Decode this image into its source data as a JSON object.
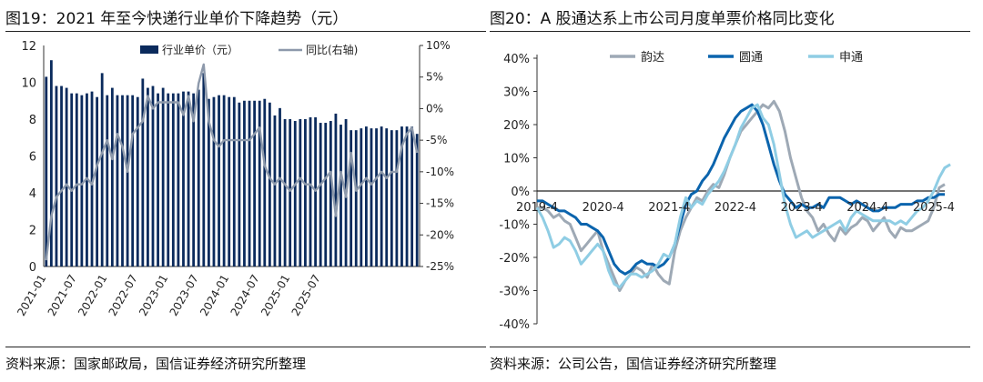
{
  "left": {
    "title": "图19：2021 年至今快递行业单价下降趋势（元）",
    "source": "资料来源：国家邮政局，国信证券经济研究所整理",
    "chart_data": {
      "type": "bar+line",
      "legend_position": "top",
      "series": [
        {
          "name": "行业单价（元）",
          "type": "bar",
          "axis": "left",
          "color": "#0a2a5c",
          "values": [
            10.3,
            11.2,
            9.8,
            9.8,
            9.7,
            9.4,
            9.4,
            9.3,
            9.4,
            9.5,
            9.2,
            10.5,
            9.3,
            9.7,
            9.3,
            9.3,
            9.3,
            9.3,
            9.2,
            10.2,
            9.7,
            9.8,
            9.4,
            9.7,
            9.4,
            9.4,
            9.4,
            9.5,
            9.5,
            9.4,
            9.6,
            10.5,
            9.1,
            9.2,
            9.3,
            9.3,
            9.2,
            9.2,
            8.9,
            9.0,
            9.0,
            9.0,
            9.0,
            9.1,
            8.9,
            8.2,
            8.6,
            8.0,
            8.0,
            7.9,
            8.0,
            8.0,
            8.1,
            8.1,
            7.8,
            7.8,
            7.9,
            8.3,
            7.7,
            8.0,
            7.4,
            7.4,
            7.5,
            7.6,
            7.5,
            7.5,
            7.6,
            7.5,
            7.4,
            7.4,
            7.6,
            7.6,
            7.6,
            7.2
          ]
        },
        {
          "name": "同比(右轴)",
          "type": "line",
          "axis": "right",
          "color": "#8d99ab",
          "values": [
            -24,
            -17,
            -14,
            -13,
            -12,
            -13,
            -12,
            -12,
            -11,
            -12,
            -9,
            -7,
            -5,
            -8,
            -4,
            -6,
            -10,
            -4,
            -3,
            -2,
            2,
            0,
            1,
            1,
            1,
            1,
            1,
            -1,
            2,
            -2,
            4,
            7,
            -2,
            -5,
            -6,
            -5,
            -5,
            -5,
            -5,
            -5,
            -5,
            -4,
            -3,
            -9,
            -11,
            -12,
            -11,
            -12,
            -13,
            -12,
            -11,
            -12,
            -12,
            -13,
            -12,
            -11,
            -10,
            -17,
            -10,
            -14,
            -7,
            -13,
            -12,
            -11,
            -12,
            -11,
            -10,
            -11,
            -10,
            -10,
            -6,
            -4,
            -3,
            -7
          ]
        }
      ],
      "x_tick_labels": [
        "2021-01",
        "2021-07",
        "2022-01",
        "2022-07",
        "2023-01",
        "2023-07",
        "2024-01",
        "2024-07",
        "2025-01",
        "2025-07"
      ],
      "x_tick_index": [
        0,
        6,
        12,
        18,
        24,
        30,
        36,
        42,
        48,
        54
      ],
      "y_left": {
        "min": 0,
        "max": 12,
        "ticks": [
          "0",
          "2",
          "4",
          "6",
          "8",
          "10",
          "12"
        ]
      },
      "y_right": {
        "min": -25,
        "max": 10,
        "ticks": [
          "-25%",
          "-20%",
          "-15%",
          "-10%",
          "-5%",
          "0%",
          "5%",
          "10%"
        ]
      }
    }
  },
  "right": {
    "title": "图20：A 股通达系上市公司月度单票价格同比变化",
    "source": "资料来源：公司公告，国信证券经济研究所整理",
    "chart_data": {
      "type": "line",
      "legend_position": "top",
      "series": [
        {
          "name": "韵达",
          "color": "#9ea9b5",
          "values": [
            -5,
            -5,
            -6,
            -8,
            -7,
            -9,
            -10,
            -14,
            -18,
            -16,
            -14,
            -12,
            -18,
            -22,
            -26,
            -30,
            -27,
            -25,
            -23,
            -24,
            -26,
            -22,
            -25,
            -27,
            -28,
            -18,
            -12,
            -8,
            -5,
            -2,
            -3,
            0,
            2,
            1,
            5,
            10,
            14,
            18,
            20,
            22,
            24,
            26,
            25,
            27,
            24,
            18,
            10,
            4,
            -2,
            -6,
            -8,
            -12,
            -10,
            -13,
            -15,
            -11,
            -13,
            -11,
            -10,
            -8,
            -9,
            -12,
            -10,
            -8,
            -12,
            -14,
            -11,
            -12,
            -12,
            -11,
            -10,
            -9,
            -5,
            1,
            2
          ]
        },
        {
          "name": "圆通",
          "color": "#0b64ad",
          "values": [
            -3,
            -3,
            -4,
            -5,
            -6,
            -6,
            -7,
            -8,
            -10,
            -10,
            -11,
            -12,
            -14,
            -18,
            -22,
            -24,
            -25,
            -24,
            -22,
            -21,
            -22,
            -22,
            -23,
            -22,
            -20,
            -16,
            -10,
            -4,
            -1,
            0,
            3,
            5,
            8,
            12,
            16,
            19,
            22,
            24,
            25,
            26,
            24,
            20,
            14,
            8,
            3,
            -1,
            -3,
            -5,
            -4,
            -5,
            -5,
            -4,
            -5,
            -2,
            -2,
            -2,
            -3,
            -4,
            -3,
            -4,
            -5,
            -6,
            -6,
            -5,
            -5,
            -5,
            -4,
            -4,
            -4,
            -3,
            -3,
            -2,
            -2,
            -1,
            -1
          ]
        },
        {
          "name": "申通",
          "color": "#8fcde4",
          "values": [
            -5,
            -8,
            -12,
            -17,
            -16,
            -14,
            -15,
            -18,
            -22,
            -20,
            -18,
            -16,
            -18,
            -24,
            -28,
            -29,
            -27,
            -25,
            -25,
            -26,
            -25,
            -24,
            -22,
            -19,
            -20,
            -16,
            -8,
            -2,
            -5,
            -3,
            -4,
            -1,
            1,
            3,
            6,
            10,
            14,
            19,
            22,
            25,
            26,
            22,
            20,
            14,
            5,
            -4,
            -10,
            -14,
            -13,
            -12,
            -14,
            -13,
            -12,
            -11,
            -10,
            -9,
            -12,
            -8,
            -6,
            -7,
            -8,
            -9,
            -9,
            -9,
            -9,
            -10,
            -9,
            -10,
            -8,
            -6,
            -5,
            -3,
            0,
            4,
            7,
            8
          ]
        }
      ],
      "x_tick_labels": [
        "2019-4",
        "2020-4",
        "2021-4",
        "2022-4",
        "2023-4",
        "2024-4",
        "2025-4"
      ],
      "x_tick_index": [
        0,
        12,
        24,
        36,
        48,
        60,
        72
      ],
      "y": {
        "min": -40,
        "max": 40,
        "ticks": [
          "-40%",
          "-30%",
          "-20%",
          "-10%",
          "0%",
          "10%",
          "20%",
          "30%",
          "40%"
        ]
      }
    }
  }
}
